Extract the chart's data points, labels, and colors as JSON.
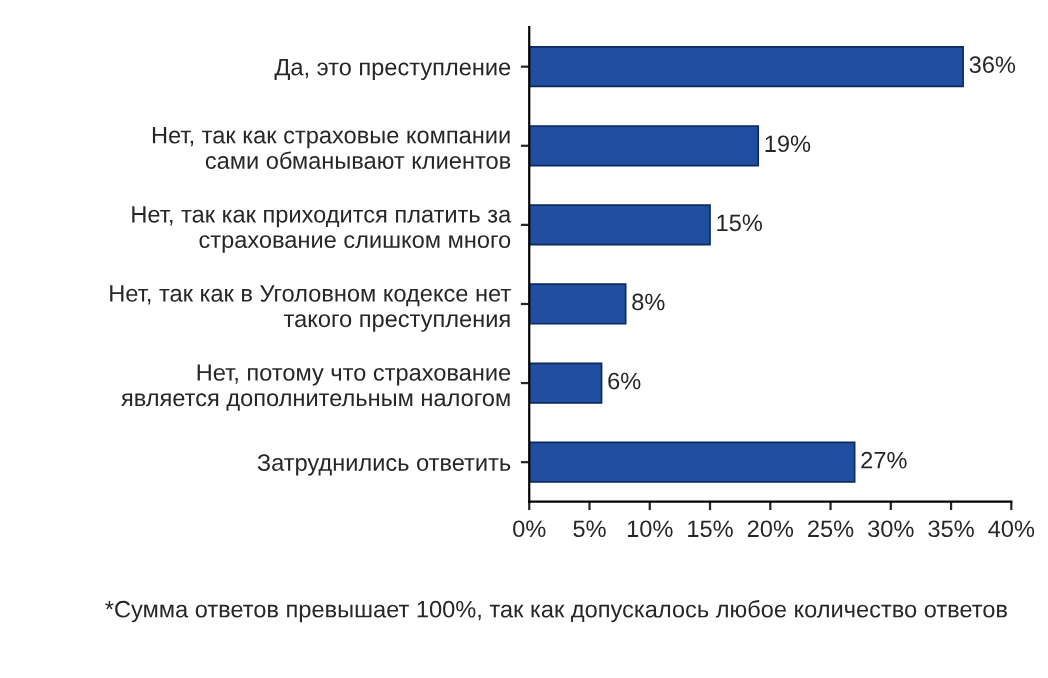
{
  "chart_data": {
    "type": "bar",
    "orientation": "horizontal",
    "categories": [
      "Да, это преступление",
      "Нет, так как страховые компании\nсами обманывают клиентов",
      "Нет, так как приходится платить за\nстрахование слишком много",
      "Нет, так как в Уголовном кодексе нет\nтакого преступления",
      "Нет, потому что страхование\nявляется дополнительным налогом",
      "Затруднились ответить"
    ],
    "values": [
      36,
      19,
      15,
      8,
      6,
      27
    ],
    "value_labels": [
      "36%",
      "19%",
      "15%",
      "8%",
      "6%",
      "27%"
    ],
    "color": "#1f4f9e",
    "xlim": [
      0,
      40
    ],
    "xticks": [
      {
        "value": 0,
        "label": "0%"
      },
      {
        "value": 5,
        "label": "5%"
      },
      {
        "value": 10,
        "label": "10%"
      },
      {
        "value": 15,
        "label": "15%"
      },
      {
        "value": 20,
        "label": "20%"
      },
      {
        "value": 25,
        "label": "25%"
      },
      {
        "value": 30,
        "label": "30%"
      },
      {
        "value": 35,
        "label": "35%"
      },
      {
        "value": 40,
        "label": "40%"
      }
    ],
    "grid": false,
    "annotations": [
      "*Сумма ответов превышает 100%, так как допускалось любое количество ответов"
    ]
  }
}
